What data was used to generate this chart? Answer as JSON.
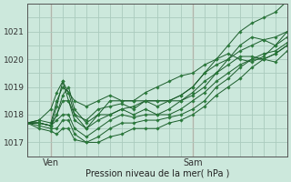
{
  "title": "",
  "xlabel": "Pression niveau de la mer( hPa )",
  "ylabel": "",
  "bg_color": "#cce8dc",
  "grid_color": "#aacbbe",
  "grid_color_red": "#e8aaaa",
  "line_color": "#1a5c2a",
  "marker_color": "#2a7a3a",
  "ylim": [
    1016.6,
    1021.9
  ],
  "xlim": [
    0,
    44
  ],
  "ven_x": 4,
  "sam_x": 28,
  "xtick_positions": [
    4,
    28
  ],
  "xticklabels": [
    "Ven",
    "Sam"
  ],
  "yticks": [
    1017,
    1018,
    1019,
    1020,
    1021
  ],
  "minor_ytick_step": 0.5,
  "series": [
    {
      "x": [
        0,
        2,
        4,
        5,
        6,
        7,
        8,
        10,
        12,
        14,
        16,
        18,
        20,
        22,
        24,
        26,
        28,
        30,
        32,
        34,
        36,
        38,
        40,
        42,
        44
      ],
      "y": [
        1017.7,
        1017.8,
        1017.7,
        1018.5,
        1019.0,
        1018.8,
        1018.5,
        1018.3,
        1018.5,
        1018.7,
        1018.5,
        1018.5,
        1018.8,
        1019.0,
        1019.2,
        1019.4,
        1019.5,
        1019.8,
        1020.0,
        1020.2,
        1020.0,
        1019.9,
        1020.1,
        1020.5,
        1021.0
      ]
    },
    {
      "x": [
        0,
        2,
        4,
        5,
        6,
        7,
        8,
        10,
        12,
        14,
        16,
        18,
        20,
        22,
        24,
        26,
        28,
        30,
        32,
        34,
        36,
        38,
        40,
        42,
        44
      ],
      "y": [
        1017.7,
        1017.7,
        1017.6,
        1018.3,
        1019.2,
        1018.8,
        1018.0,
        1017.8,
        1018.2,
        1018.3,
        1018.4,
        1018.2,
        1018.5,
        1018.3,
        1018.5,
        1018.7,
        1019.0,
        1019.5,
        1019.8,
        1020.0,
        1020.3,
        1020.5,
        1020.7,
        1020.8,
        1021.0
      ]
    },
    {
      "x": [
        0,
        2,
        4,
        5,
        6,
        7,
        8,
        10,
        12,
        14,
        16,
        18,
        20,
        22,
        24,
        26,
        28,
        30,
        32,
        34,
        36,
        38,
        40,
        42,
        44
      ],
      "y": [
        1017.7,
        1017.7,
        1017.6,
        1018.0,
        1018.7,
        1019.0,
        1018.2,
        1017.7,
        1018.0,
        1018.0,
        1018.2,
        1018.0,
        1018.2,
        1018.0,
        1018.2,
        1018.5,
        1018.8,
        1019.2,
        1019.5,
        1019.8,
        1020.1,
        1020.1,
        1020.0,
        1019.9,
        1020.3
      ]
    },
    {
      "x": [
        0,
        2,
        4,
        5,
        6,
        7,
        8,
        10,
        12,
        14,
        16,
        18,
        20,
        22,
        24,
        26,
        28,
        30,
        32,
        34,
        36,
        38,
        40,
        42,
        44
      ],
      "y": [
        1017.7,
        1017.7,
        1017.6,
        1017.8,
        1018.0,
        1018.0,
        1017.5,
        1017.2,
        1017.5,
        1017.8,
        1018.0,
        1017.9,
        1018.0,
        1018.0,
        1018.0,
        1018.2,
        1018.5,
        1018.8,
        1019.2,
        1019.5,
        1019.8,
        1020.0,
        1020.0,
        1020.2,
        1020.5
      ]
    },
    {
      "x": [
        0,
        2,
        4,
        5,
        6,
        7,
        8,
        10,
        12,
        14,
        16,
        18,
        20,
        22,
        24,
        26,
        28,
        30,
        32,
        34,
        36,
        38,
        40,
        42,
        44
      ],
      "y": [
        1017.7,
        1017.6,
        1017.5,
        1017.5,
        1017.8,
        1017.8,
        1017.3,
        1017.0,
        1017.2,
        1017.5,
        1017.7,
        1017.7,
        1017.8,
        1017.8,
        1017.9,
        1018.0,
        1018.2,
        1018.5,
        1019.0,
        1019.3,
        1019.7,
        1020.0,
        1020.2,
        1020.3,
        1020.6
      ]
    },
    {
      "x": [
        0,
        2,
        4,
        5,
        6,
        7,
        8,
        10,
        12,
        14,
        16,
        18,
        20,
        22,
        24,
        26,
        28,
        30,
        32,
        34,
        36,
        38,
        40,
        42,
        44
      ],
      "y": [
        1017.7,
        1017.5,
        1017.4,
        1017.3,
        1017.5,
        1017.5,
        1017.1,
        1017.0,
        1017.0,
        1017.2,
        1017.3,
        1017.5,
        1017.5,
        1017.5,
        1017.7,
        1017.8,
        1018.0,
        1018.3,
        1018.7,
        1019.0,
        1019.3,
        1019.7,
        1020.0,
        1020.2,
        1020.5
      ]
    },
    {
      "x": [
        0,
        2,
        4,
        5,
        6,
        7,
        8,
        10,
        12,
        14,
        16,
        18,
        20,
        22,
        24,
        26,
        28,
        30,
        32,
        34,
        36,
        38,
        40,
        42,
        44
      ],
      "y": [
        1017.7,
        1017.8,
        1018.2,
        1018.8,
        1019.2,
        1018.5,
        1017.8,
        1017.5,
        1018.0,
        1018.5,
        1018.5,
        1018.5,
        1018.5,
        1018.5,
        1018.5,
        1018.7,
        1019.0,
        1019.5,
        1020.0,
        1020.5,
        1021.0,
        1021.3,
        1021.5,
        1021.7,
        1022.1
      ]
    },
    {
      "x": [
        0,
        2,
        4,
        5,
        6,
        7,
        8,
        10,
        12,
        14,
        16,
        18,
        20,
        22,
        24,
        26,
        28,
        30,
        32,
        34,
        36,
        38,
        40,
        42,
        44
      ],
      "y": [
        1017.7,
        1017.7,
        1017.6,
        1018.0,
        1018.5,
        1018.5,
        1018.0,
        1017.5,
        1017.8,
        1018.0,
        1018.2,
        1018.3,
        1018.5,
        1018.5,
        1018.5,
        1018.5,
        1018.7,
        1019.0,
        1019.5,
        1020.0,
        1020.5,
        1020.8,
        1020.7,
        1020.5,
        1020.8
      ]
    }
  ]
}
